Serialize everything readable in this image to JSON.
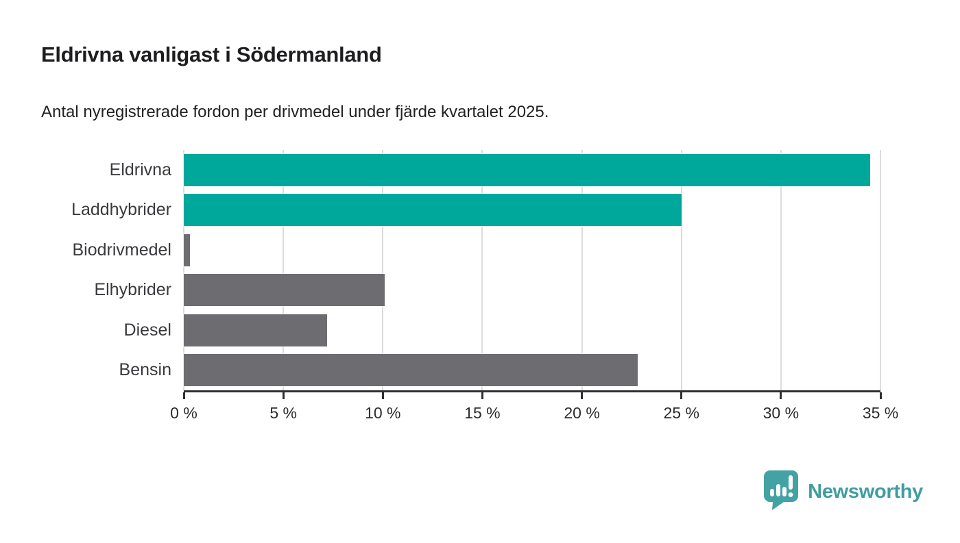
{
  "page": {
    "title": "Eldrivna vanligast i Södermanland",
    "subtitle": "Antal nyregistrerade fordon per drivmedel under fjärde kvartalet 2025."
  },
  "chart_data": {
    "type": "bar",
    "orientation": "horizontal",
    "title": "Eldrivna vanligast i Södermanland",
    "subtitle": "Antal nyregistrerade fordon per drivmedel under fjärde kvartalet 2025.",
    "categories": [
      "Eldrivna",
      "Laddhybrider",
      "Biodrivmedel",
      "Elhybrider",
      "Diesel",
      "Bensin"
    ],
    "values": [
      34.5,
      25.0,
      0.3,
      10.1,
      7.2,
      22.8
    ],
    "unit": "%",
    "bar_colors": [
      "#00a79b",
      "#00a79b",
      "#6c6c71",
      "#6c6c71",
      "#6c6c71",
      "#6c6c71"
    ],
    "xlabel": "",
    "ylabel": "",
    "xlim": [
      0,
      35
    ],
    "x_ticks": [
      0,
      5,
      10,
      15,
      20,
      25,
      30,
      35
    ],
    "x_tick_labels": [
      "0 %",
      "5 %",
      "10 %",
      "15 %",
      "20 %",
      "25 %",
      "30 %",
      "35 %"
    ],
    "grid": true,
    "legend": false
  },
  "branding": {
    "logo_text": "Newsworthy",
    "logo_color": "#3f9da1",
    "logo_mark_color": "#43a2a3"
  },
  "colors": {
    "teal": "#00a79b",
    "gray": "#6c6c71",
    "gridline": "#dcdcdc",
    "axis": "#2f2f32",
    "background": "#ffffff"
  }
}
